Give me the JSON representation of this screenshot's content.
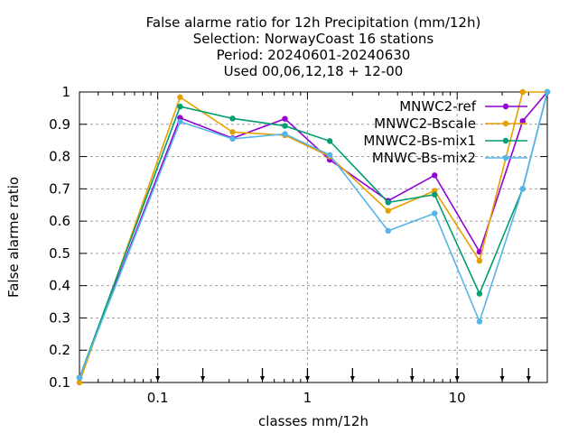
{
  "chart_data": {
    "type": "line",
    "title_lines": [
      "False alarme ratio  for 12h Precipitation (mm/12h)",
      "Selection: NorwayCoast     16 stations",
      "Period: 20240601-20240630",
      "Used 00,06,12,18 + 12-00"
    ],
    "xlabel": "classes mm/12h",
    "ylabel": "False alarme ratio",
    "x_scale": "log",
    "xlim": [
      0.03,
      40
    ],
    "ylim": [
      0.1,
      1.0
    ],
    "x_ticks": [
      0.1,
      1,
      10
    ],
    "x_tick_labels": [
      "0.1",
      "1",
      "10"
    ],
    "y_ticks": [
      0.1,
      0.2,
      0.3,
      0.4,
      0.5,
      0.6,
      0.7,
      0.8,
      0.9,
      1.0
    ],
    "y_tick_labels": [
      "0.1",
      "0.2",
      "0.3",
      "0.4",
      "0.5",
      "0.6",
      "0.7",
      "0.8",
      "0.9",
      "1"
    ],
    "class_thresholds": [
      0.1,
      0.2,
      0.5,
      1,
      2,
      5,
      10,
      20,
      30
    ],
    "grid": true,
    "legend_position": "top-right",
    "series": [
      {
        "name": "MNWC2-ref",
        "color": "#9400d3",
        "x": [
          0.03,
          0.141,
          0.316,
          0.707,
          1.41,
          3.46,
          7.07,
          14.1,
          27.4,
          40
        ],
        "y": [
          0.115,
          0.92,
          0.857,
          0.917,
          0.79,
          0.663,
          0.742,
          0.505,
          0.91,
          1.0
        ]
      },
      {
        "name": "MNWC2-Bscale",
        "color": "#e69f00",
        "x": [
          0.03,
          0.141,
          0.316,
          0.707,
          1.41,
          3.46,
          7.07,
          14.1,
          27.4,
          40
        ],
        "y": [
          0.1,
          0.984,
          0.876,
          0.866,
          0.8,
          0.632,
          0.694,
          0.477,
          1.0,
          1.0
        ]
      },
      {
        "name": "MNWC2-Bs-mix1",
        "color": "#009e73",
        "x": [
          0.03,
          0.141,
          0.316,
          0.707,
          1.41,
          3.46,
          7.07,
          14.1,
          27.4,
          40
        ],
        "y": [
          0.115,
          0.955,
          0.918,
          0.895,
          0.848,
          0.658,
          0.682,
          0.375,
          0.7,
          1.0
        ]
      },
      {
        "name": "MNWC-Bs-mix2",
        "color": "#56b4e9",
        "x": [
          0.03,
          0.141,
          0.316,
          0.707,
          1.41,
          3.46,
          7.07,
          14.1,
          27.4,
          40
        ],
        "y": [
          0.115,
          0.908,
          0.855,
          0.87,
          0.805,
          0.57,
          0.624,
          0.289,
          0.7,
          1.0
        ]
      }
    ]
  }
}
